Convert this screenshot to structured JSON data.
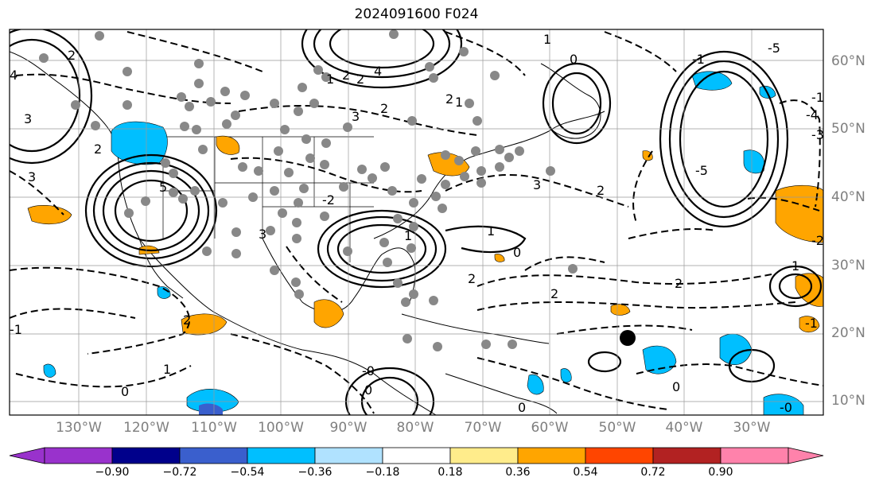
{
  "title": "2024091600 F024",
  "lat_labels": [
    "60°N",
    "50°N",
    "40°N",
    "30°N",
    "20°N",
    "10°N"
  ],
  "lon_labels": [
    "130°W",
    "120°W",
    "110°W",
    "100°W",
    "90°W",
    "80°W",
    "70°W",
    "60°W",
    "50°W",
    "40°W",
    "30°W"
  ],
  "colorbar": {
    "colors": [
      "#9932cc",
      "#00008b",
      "#3a5fcd",
      "#00bfff",
      "#b0e2ff",
      "#ffffff",
      "#ffec8b",
      "#ffa500",
      "#ff4500",
      "#b22222",
      "#ff82ab"
    ],
    "ticks": [
      "−0.90",
      "−0.72",
      "−0.54",
      "−0.36",
      "−0.18",
      "0.18",
      "0.36",
      "0.54",
      "0.72",
      "0.90"
    ]
  },
  "contour_labels": [
    "2",
    "4",
    "3",
    "1",
    "2",
    "2",
    "2",
    "1",
    "0",
    "1",
    "4",
    "-5",
    "3",
    "2",
    "2",
    "3",
    "3",
    "3",
    "1",
    "0",
    "-1",
    "5",
    "2",
    "1",
    "2",
    "2",
    "2",
    "1",
    "2",
    "-1",
    "0",
    "-0",
    "0",
    "0",
    "0",
    "-0",
    "1",
    "-2",
    "-5",
    "-1",
    "-4",
    "-3",
    "-2",
    "-1"
  ]
}
